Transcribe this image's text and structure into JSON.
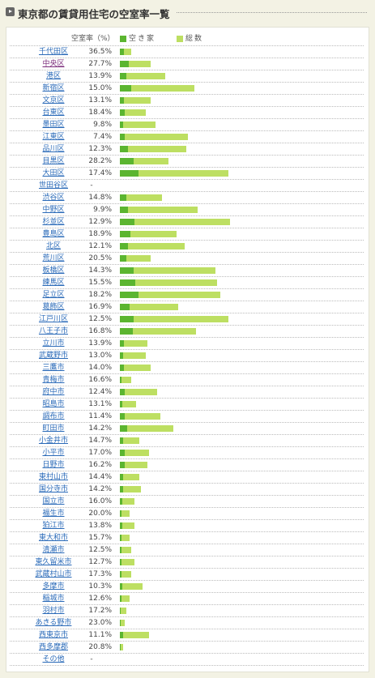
{
  "header": {
    "title": "東京都の賃貸用住宅の空室率一覧"
  },
  "table": {
    "rate_header": "空室率（%）",
    "legend": [
      {
        "name": "空き家",
        "color": "#5bb530"
      },
      {
        "name": "総数",
        "color": "#bddf62"
      }
    ],
    "rows": [
      {
        "name": "千代田区",
        "rate": "36.5%",
        "vacant": 5.1,
        "total": 14
      },
      {
        "name": "中央区",
        "rate": "27.7%",
        "vacant": 10.5,
        "total": 38
      },
      {
        "name": "港区",
        "rate": "13.9%",
        "vacant": 7.8,
        "total": 56
      },
      {
        "name": "新宿区",
        "rate": "15.0%",
        "vacant": 13.8,
        "total": 92
      },
      {
        "name": "文京区",
        "rate": "13.1%",
        "vacant": 5,
        "total": 38
      },
      {
        "name": "台東区",
        "rate": "18.4%",
        "vacant": 5.9,
        "total": 32
      },
      {
        "name": "墨田区",
        "rate": "9.8%",
        "vacant": 4.3,
        "total": 44
      },
      {
        "name": "江東区",
        "rate": "7.4%",
        "vacant": 6.2,
        "total": 84
      },
      {
        "name": "品川区",
        "rate": "12.3%",
        "vacant": 10.1,
        "total": 82
      },
      {
        "name": "目黒区",
        "rate": "28.2%",
        "vacant": 16.9,
        "total": 60
      },
      {
        "name": "大田区",
        "rate": "17.4%",
        "vacant": 23.3,
        "total": 134
      },
      {
        "name": "世田谷区",
        "rate": "-",
        "vacant": null,
        "total": null
      },
      {
        "name": "渋谷区",
        "rate": "14.8%",
        "vacant": 7.7,
        "total": 52
      },
      {
        "name": "中野区",
        "rate": "9.9%",
        "vacant": 9.5,
        "total": 96
      },
      {
        "name": "杉並区",
        "rate": "12.9%",
        "vacant": 17.5,
        "total": 136
      },
      {
        "name": "豊島区",
        "rate": "18.9%",
        "vacant": 13.2,
        "total": 70
      },
      {
        "name": "北区",
        "rate": "12.1%",
        "vacant": 9.7,
        "total": 80
      },
      {
        "name": "荒川区",
        "rate": "20.5%",
        "vacant": 7.8,
        "total": 38
      },
      {
        "name": "板橋区",
        "rate": "14.3%",
        "vacant": 16.9,
        "total": 118
      },
      {
        "name": "練馬区",
        "rate": "15.5%",
        "vacant": 18.6,
        "total": 120
      },
      {
        "name": "足立区",
        "rate": "18.2%",
        "vacant": 22.6,
        "total": 124
      },
      {
        "name": "葛飾区",
        "rate": "16.9%",
        "vacant": 12.2,
        "total": 72
      },
      {
        "name": "江戸川区",
        "rate": "12.5%",
        "vacant": 16.8,
        "total": 134
      },
      {
        "name": "八王子市",
        "rate": "16.8%",
        "vacant": 15.8,
        "total": 94
      },
      {
        "name": "立川市",
        "rate": "13.9%",
        "vacant": 4.7,
        "total": 34
      },
      {
        "name": "武蔵野市",
        "rate": "13.0%",
        "vacant": 4.2,
        "total": 32
      },
      {
        "name": "三鷹市",
        "rate": "14.0%",
        "vacant": 5.3,
        "total": 38
      },
      {
        "name": "青梅市",
        "rate": "16.6%",
        "vacant": 2.3,
        "total": 14
      },
      {
        "name": "府中市",
        "rate": "12.4%",
        "vacant": 5.7,
        "total": 46
      },
      {
        "name": "昭島市",
        "rate": "13.1%",
        "vacant": 2.6,
        "total": 20
      },
      {
        "name": "調布市",
        "rate": "11.4%",
        "vacant": 5.7,
        "total": 50
      },
      {
        "name": "町田市",
        "rate": "14.2%",
        "vacant": 9.4,
        "total": 66
      },
      {
        "name": "小金井市",
        "rate": "14.7%",
        "vacant": 3.5,
        "total": 24
      },
      {
        "name": "小平市",
        "rate": "17.0%",
        "vacant": 6.1,
        "total": 36
      },
      {
        "name": "日野市",
        "rate": "16.2%",
        "vacant": 5.5,
        "total": 34
      },
      {
        "name": "東村山市",
        "rate": "14.4%",
        "vacant": 3.5,
        "total": 24
      },
      {
        "name": "国分寺市",
        "rate": "14.2%",
        "vacant": 3.7,
        "total": 26
      },
      {
        "name": "国立市",
        "rate": "16.0%",
        "vacant": 2.9,
        "total": 18
      },
      {
        "name": "福生市",
        "rate": "20.0%",
        "vacant": 2.4,
        "total": 12
      },
      {
        "name": "狛江市",
        "rate": "13.8%",
        "vacant": 2.5,
        "total": 18
      },
      {
        "name": "東大和市",
        "rate": "15.7%",
        "vacant": 1.9,
        "total": 12
      },
      {
        "name": "清瀬市",
        "rate": "12.5%",
        "vacant": 1.8,
        "total": 14
      },
      {
        "name": "東久留米市",
        "rate": "12.7%",
        "vacant": 2.3,
        "total": 18
      },
      {
        "name": "武蔵村山市",
        "rate": "17.3%",
        "vacant": 2.4,
        "total": 14
      },
      {
        "name": "多摩市",
        "rate": "10.3%",
        "vacant": 2.9,
        "total": 28
      },
      {
        "name": "稲城市",
        "rate": "12.6%",
        "vacant": 1.5,
        "total": 12
      },
      {
        "name": "羽村市",
        "rate": "17.2%",
        "vacant": 1.4,
        "total": 8
      },
      {
        "name": "あきる野市",
        "rate": "23.0%",
        "vacant": 1.4,
        "total": 6
      },
      {
        "name": "西東京市",
        "rate": "11.1%",
        "vacant": 4,
        "total": 36
      },
      {
        "name": "西多摩郡",
        "rate": "20.8%",
        "vacant": 0.8,
        "total": 4
      },
      {
        "name": "その他",
        "rate": "-",
        "vacant": null,
        "total": null
      }
    ]
  }
}
